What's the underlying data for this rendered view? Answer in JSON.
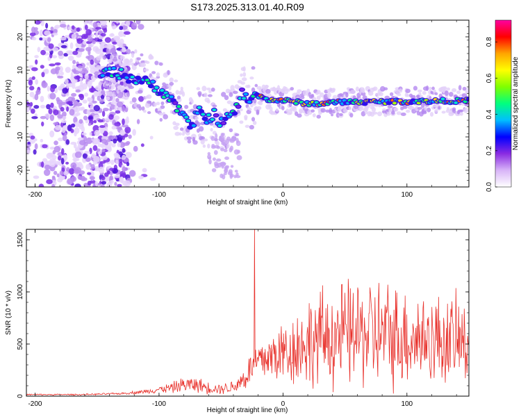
{
  "chart_data": [
    {
      "type": "heatmap",
      "title": "S173.2025.313.01.40.R09",
      "xlabel": "Height of straight line (km)",
      "ylabel": "Frequency (Hz)",
      "xlim": [
        -207,
        150
      ],
      "ylim": [
        -25,
        25
      ],
      "xticks": [
        -200,
        -100,
        0,
        100
      ],
      "xtick_labels": [
        "-200",
        "-100",
        "0",
        "100"
      ],
      "yticks": [
        -20,
        -10,
        0,
        10,
        20
      ],
      "ytick_labels": [
        "-20",
        "-10",
        "0",
        "10",
        "20"
      ],
      "ridge": {
        "x": [
          -145,
          -135,
          -125,
          -115,
          -105,
          -95,
          -88,
          -80,
          -75,
          -68,
          -62,
          -56,
          -50,
          -44,
          -38,
          -33,
          -28,
          -20,
          -10,
          0,
          10,
          20,
          30,
          40,
          50,
          60,
          70,
          80,
          90,
          100,
          110,
          120,
          130,
          140,
          150
        ],
        "y": [
          9,
          9.5,
          8,
          7,
          5.5,
          3,
          0,
          -3,
          -8,
          -2,
          -5,
          -3,
          -6,
          -4,
          -2,
          3,
          1,
          2.5,
          1,
          1,
          0.5,
          0,
          0,
          0.3,
          0.5,
          0.5,
          0.5,
          0.6,
          0.6,
          0.6,
          0.7,
          0.7,
          0.8,
          0.8,
          0.9
        ]
      },
      "noise_region_x": [
        -207,
        -125
      ],
      "colorbar": {
        "label": "Normalized spectral amplitude",
        "range": [
          0,
          0.92
        ],
        "ticks": [
          0,
          0.2,
          0.4,
          0.6,
          0.8
        ],
        "tick_labels": [
          "0.0",
          "0.2",
          "0.4",
          "0.6",
          "0.8"
        ],
        "colors": [
          "#ffffff",
          "#d8b4f8",
          "#8a2be2",
          "#0000ff",
          "#00bfff",
          "#00ff7f",
          "#7fff00",
          "#ffff00",
          "#ffa500",
          "#ff0000",
          "#ff00a0"
        ]
      }
    },
    {
      "type": "line",
      "xlabel": "Height of straight line (km)",
      "ylabel": "SNR (10 * v/v)",
      "xlim": [
        -207,
        150
      ],
      "ylim": [
        0,
        1600
      ],
      "xticks": [
        -200,
        -100,
        0,
        100
      ],
      "xtick_labels": [
        "-200",
        "-100",
        "0",
        "100"
      ],
      "yticks": [
        0,
        500,
        1000,
        1500
      ],
      "ytick_labels": [
        "0",
        "500",
        "1000",
        "1500"
      ],
      "color": "#e8302a",
      "spike": {
        "x": -23,
        "y": 1620
      },
      "envelope": {
        "x": [
          -207,
          -160,
          -130,
          -110,
          -100,
          -90,
          -80,
          -70,
          -60,
          -50,
          -40,
          -30,
          -25,
          -20,
          -10,
          0,
          10,
          20,
          40,
          60,
          75,
          90,
          110,
          130,
          150
        ],
        "mean": [
          15,
          15,
          25,
          45,
          65,
          80,
          110,
          110,
          80,
          70,
          90,
          180,
          280,
          330,
          380,
          420,
          460,
          520,
          580,
          600,
          600,
          580,
          560,
          540,
          520
        ],
        "amp": [
          8,
          8,
          12,
          25,
          40,
          60,
          90,
          90,
          70,
          60,
          80,
          150,
          220,
          250,
          300,
          380,
          430,
          520,
          600,
          620,
          650,
          600,
          550,
          520,
          500
        ]
      }
    }
  ]
}
